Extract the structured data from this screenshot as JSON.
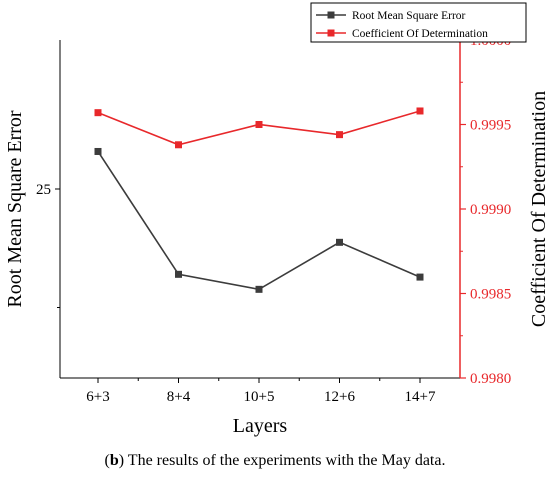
{
  "chart_data": {
    "type": "line",
    "categories": [
      "6+3",
      "8+4",
      "10+5",
      "12+6",
      "14+7"
    ],
    "xlabel": "Layers",
    "y_left": {
      "label": "Root Mean Square Error",
      "ticks": [
        "25"
      ],
      "tick_values": [
        25
      ],
      "minor_tick_values": [
        22
      ]
    },
    "y_right": {
      "label": "Coefficient Of Determination",
      "ticks": [
        "0.9980",
        "0.9985",
        "0.9990",
        "0.9995",
        "1.0000"
      ],
      "tick_values": [
        0.998,
        0.9985,
        0.999,
        0.9995,
        1.0
      ],
      "ylim": [
        0.998,
        1.0
      ],
      "color": "#e8282b"
    },
    "series": [
      {
        "name": "Root Mean Square Error",
        "axis": "left",
        "color": "#3c3c3c",
        "values": [
          25.95,
          22.84,
          22.46,
          23.65,
          22.77
        ]
      },
      {
        "name": "Coefficient Of Determination",
        "axis": "right",
        "color": "#e8282b",
        "values": [
          0.99957,
          0.99938,
          0.9995,
          0.99944,
          0.99958
        ]
      }
    ],
    "legend_position": "top-right",
    "grid": false
  },
  "caption": {
    "label": "b",
    "text": " The results of the experiments with the May data."
  }
}
